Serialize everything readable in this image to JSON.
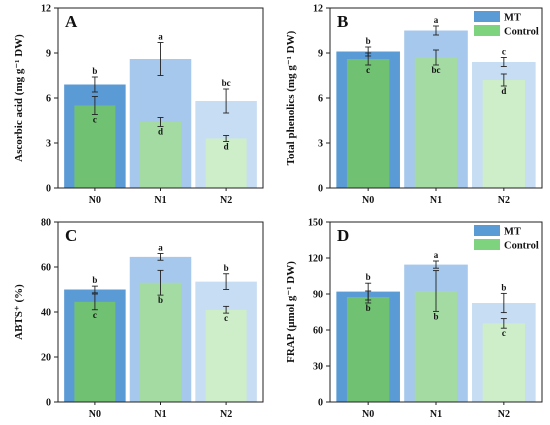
{
  "legend": {
    "mt_label": "MT",
    "control_label": "Control"
  },
  "colors": {
    "mt": [
      "#5b9bd5",
      "#a6c8ec",
      "#c6ddf3"
    ],
    "control": [
      "#70c172",
      "#a3dba2",
      "#cdeec9"
    ],
    "legend_mt": "#5b9bd5",
    "legend_control": "#7ed37e"
  },
  "chart_data": [
    {
      "panel_label": "A",
      "type": "bar",
      "ylabel": "Ascorbic acid (mg g⁻¹ DW)",
      "ylim": [
        0,
        12
      ],
      "yticks": [
        0,
        3,
        6,
        9,
        12
      ],
      "categories": [
        "N0",
        "N1",
        "N2"
      ],
      "series": [
        {
          "name": "MT",
          "values": [
            6.9,
            8.6,
            5.8
          ],
          "errors": [
            0.5,
            1.1,
            0.8
          ],
          "letters": [
            "b",
            "a",
            "bc"
          ]
        },
        {
          "name": "Control",
          "values": [
            5.5,
            4.4,
            3.3
          ],
          "errors": [
            0.6,
            0.3,
            0.2
          ],
          "letters": [
            "c",
            "d",
            "d"
          ]
        }
      ],
      "legend": false
    },
    {
      "panel_label": "B",
      "type": "bar",
      "ylabel": "Total phenolics (mg g⁻¹ DW)",
      "ylim": [
        0,
        12
      ],
      "yticks": [
        0,
        3,
        6,
        9,
        12
      ],
      "categories": [
        "N0",
        "N1",
        "N2"
      ],
      "series": [
        {
          "name": "MT",
          "values": [
            9.1,
            10.5,
            8.4
          ],
          "errors": [
            0.3,
            0.3,
            0.3
          ],
          "letters": [
            "b",
            "a",
            "c"
          ]
        },
        {
          "name": "Control",
          "values": [
            8.6,
            8.7,
            7.2
          ],
          "errors": [
            0.4,
            0.5,
            0.4
          ],
          "letters": [
            "c",
            "bc",
            "d"
          ]
        }
      ],
      "legend": true,
      "legend_position": "top-right"
    },
    {
      "panel_label": "C",
      "type": "bar",
      "ylabel": "ABTS⁺ (%)",
      "ylim": [
        0,
        80
      ],
      "yticks": [
        0,
        20,
        40,
        60,
        80
      ],
      "categories": [
        "N0",
        "N1",
        "N2"
      ],
      "series": [
        {
          "name": "MT",
          "values": [
            50,
            64.5,
            53.5
          ],
          "errors": [
            1.5,
            1.5,
            3.5
          ],
          "letters": [
            "b",
            "a",
            "b"
          ]
        },
        {
          "name": "Control",
          "values": [
            44.5,
            53,
            41
          ],
          "errors": [
            3.5,
            5.5,
            1.5
          ],
          "letters": [
            "c",
            "b",
            "c"
          ]
        }
      ],
      "legend": false
    },
    {
      "panel_label": "D",
      "type": "bar",
      "ylabel": "FRAP (μmol g⁻¹ DW)",
      "ylim": [
        0,
        150
      ],
      "yticks": [
        0,
        30,
        60,
        90,
        120,
        150
      ],
      "categories": [
        "N0",
        "N1",
        "N2"
      ],
      "series": [
        {
          "name": "MT",
          "values": [
            92,
            114.5,
            82.5
          ],
          "errors": [
            7,
            3,
            8
          ],
          "letters": [
            "b",
            "a",
            "b"
          ]
        },
        {
          "name": "Control",
          "values": [
            87.5,
            92.5,
            65.5
          ],
          "errors": [
            5,
            17,
            4
          ],
          "letters": [
            "b",
            "b",
            "c"
          ]
        }
      ],
      "legend": true,
      "legend_position": "top-right"
    }
  ]
}
